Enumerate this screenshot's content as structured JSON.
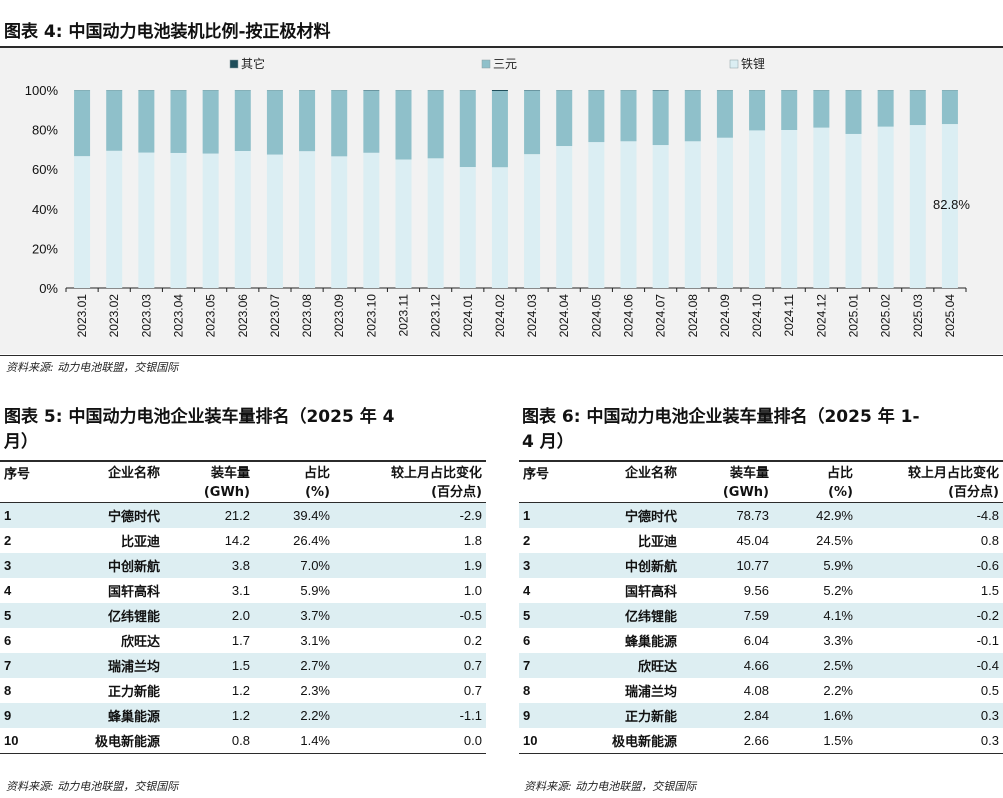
{
  "fig4": {
    "title": "图表 4: 中国动力电池装机比例-按正极材料",
    "source": "资料来源: 动力电池联盟，交银国际"
  },
  "chart_data": {
    "type": "bar",
    "stacked": true,
    "percent": true,
    "categories": [
      "2023.01",
      "2023.02",
      "2023.03",
      "2023.04",
      "2023.05",
      "2023.06",
      "2023.07",
      "2023.08",
      "2023.09",
      "2023.10",
      "2023.11",
      "2023.12",
      "2024.01",
      "2024.02",
      "2024.03",
      "2024.04",
      "2024.05",
      "2024.06",
      "2024.07",
      "2024.08",
      "2024.09",
      "2024.10",
      "2024.11",
      "2024.12",
      "2025.01",
      "2025.02",
      "2025.03",
      "2025.04"
    ],
    "series": [
      {
        "name": "铁锂",
        "color": "#dbeef3",
        "values": [
          66.6,
          69.3,
          68.4,
          68.2,
          67.9,
          69.2,
          67.4,
          69.1,
          66.5,
          68.3,
          64.9,
          65.5,
          61.1,
          61.0,
          67.6,
          71.7,
          73.7,
          74.1,
          72.2,
          74.1,
          75.9,
          79.6,
          79.8,
          81.0,
          77.8,
          81.5,
          82.3,
          82.8
        ]
      },
      {
        "name": "三元",
        "color": "#8fc0ca",
        "values": [
          33.3,
          30.6,
          31.5,
          31.7,
          32.0,
          30.7,
          32.5,
          30.8,
          33.4,
          31.5,
          35.0,
          34.4,
          38.8,
          38.5,
          32.2,
          28.2,
          26.2,
          25.8,
          27.6,
          25.8,
          24.0,
          20.3,
          20.1,
          18.9,
          22.1,
          18.4,
          17.6,
          17.1
        ]
      },
      {
        "name": "其它",
        "color": "#1f4e5a",
        "values": [
          0.1,
          0.1,
          0.1,
          0.1,
          0.1,
          0.1,
          0.1,
          0.1,
          0.1,
          0.2,
          0.1,
          0.1,
          0.1,
          0.5,
          0.2,
          0.1,
          0.1,
          0.1,
          0.2,
          0.1,
          0.1,
          0.1,
          0.1,
          0.1,
          0.1,
          0.1,
          0.1,
          0.1
        ]
      }
    ],
    "legend_order": [
      "其它",
      "三元",
      "铁锂"
    ],
    "yticks": [
      "0%",
      "20%",
      "40%",
      "60%",
      "80%",
      "100%"
    ],
    "ylim": [
      0,
      100
    ],
    "legend": "top",
    "annotation": {
      "category": "2025.04",
      "text": "82.8%"
    }
  },
  "fig5": {
    "title_line1": "图表 5: 中国动力电池企业装车量排名（2025 年 4",
    "title_line2": "月）",
    "headers": {
      "rank": "序号",
      "name": "企业名称",
      "volume_1": "装车量",
      "volume_2": "(GWh)",
      "share_1": "占比",
      "share_2": "(%)",
      "change_1": "较上月占比变化",
      "change_2": "(百分点)"
    },
    "rows": [
      {
        "rank": "1",
        "name": "宁德时代",
        "volume": "21.2",
        "share": "39.4%",
        "change": "-2.9"
      },
      {
        "rank": "2",
        "name": "比亚迪",
        "volume": "14.2",
        "share": "26.4%",
        "change": "1.8"
      },
      {
        "rank": "3",
        "name": "中创新航",
        "volume": "3.8",
        "share": "7.0%",
        "change": "1.9"
      },
      {
        "rank": "4",
        "name": "国轩高科",
        "volume": "3.1",
        "share": "5.9%",
        "change": "1.0"
      },
      {
        "rank": "5",
        "name": "亿纬锂能",
        "volume": "2.0",
        "share": "3.7%",
        "change": "-0.5"
      },
      {
        "rank": "6",
        "name": "欣旺达",
        "volume": "1.7",
        "share": "3.1%",
        "change": "0.2"
      },
      {
        "rank": "7",
        "name": "瑞浦兰均",
        "volume": "1.5",
        "share": "2.7%",
        "change": "0.7"
      },
      {
        "rank": "8",
        "name": "正力新能",
        "volume": "1.2",
        "share": "2.3%",
        "change": "0.7"
      },
      {
        "rank": "9",
        "name": "蜂巢能源",
        "volume": "1.2",
        "share": "2.2%",
        "change": "-1.1"
      },
      {
        "rank": "10",
        "name": "极电新能源",
        "volume": "0.8",
        "share": "1.4%",
        "change": "0.0"
      }
    ],
    "source": "资料来源: 动力电池联盟，交银国际"
  },
  "fig6": {
    "title_line1": "图表 6: 中国动力电池企业装车量排名（2025 年 1-",
    "title_line2": "4 月）",
    "headers": {
      "rank": "序号",
      "name": "企业名称",
      "volume_1": "装车量",
      "volume_2": "(GWh)",
      "share_1": "占比",
      "share_2": "(%)",
      "change_1": "较上月占比变化",
      "change_2": "(百分点)"
    },
    "rows": [
      {
        "rank": "1",
        "name": "宁德时代",
        "volume": "78.73",
        "share": "42.9%",
        "change": "-4.8"
      },
      {
        "rank": "2",
        "name": "比亚迪",
        "volume": "45.04",
        "share": "24.5%",
        "change": "0.8"
      },
      {
        "rank": "3",
        "name": "中创新航",
        "volume": "10.77",
        "share": "5.9%",
        "change": "-0.6"
      },
      {
        "rank": "4",
        "name": "国轩高科",
        "volume": "9.56",
        "share": "5.2%",
        "change": "1.5"
      },
      {
        "rank": "5",
        "name": "亿纬锂能",
        "volume": "7.59",
        "share": "4.1%",
        "change": "-0.2"
      },
      {
        "rank": "6",
        "name": "蜂巢能源",
        "volume": "6.04",
        "share": "3.3%",
        "change": "-0.1"
      },
      {
        "rank": "7",
        "name": "欣旺达",
        "volume": "4.66",
        "share": "2.5%",
        "change": "-0.4"
      },
      {
        "rank": "8",
        "name": "瑞浦兰均",
        "volume": "4.08",
        "share": "2.2%",
        "change": "0.5"
      },
      {
        "rank": "9",
        "name": "正力新能",
        "volume": "2.84",
        "share": "1.6%",
        "change": "0.3"
      },
      {
        "rank": "10",
        "name": "极电新能源",
        "volume": "2.66",
        "share": "1.5%",
        "change": "0.3"
      }
    ],
    "source": "资料来源: 动力电池联盟，交银国际"
  }
}
